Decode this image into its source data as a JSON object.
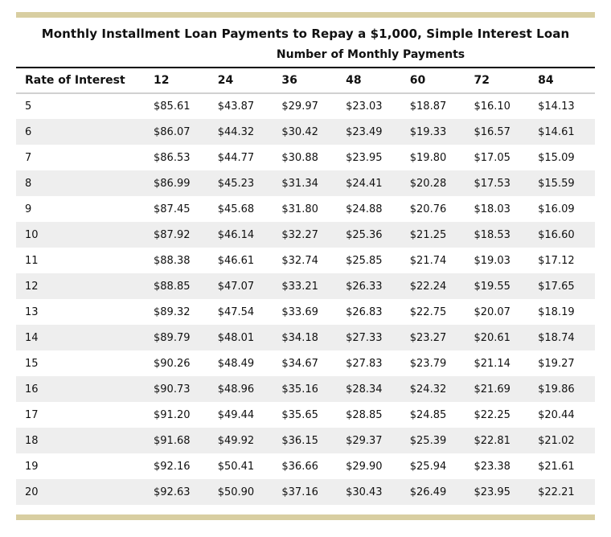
{
  "table": {
    "title": "Monthly Installment Loan Payments to Repay a $1,000, Simple Interest Loan",
    "subtitle": "Number of Monthly Payments",
    "rate_header": "Rate of Interest",
    "payment_columns": [
      "12",
      "24",
      "36",
      "48",
      "60",
      "72",
      "84"
    ],
    "rows": [
      {
        "rate": "5",
        "values": [
          "$85.61",
          "$43.87",
          "$29.97",
          "$23.03",
          "$18.87",
          "$16.10",
          "$14.13"
        ]
      },
      {
        "rate": "6",
        "values": [
          "$86.07",
          "$44.32",
          "$30.42",
          "$23.49",
          "$19.33",
          "$16.57",
          "$14.61"
        ]
      },
      {
        "rate": "7",
        "values": [
          "$86.53",
          "$44.77",
          "$30.88",
          "$23.95",
          "$19.80",
          "$17.05",
          "$15.09"
        ]
      },
      {
        "rate": "8",
        "values": [
          "$86.99",
          "$45.23",
          "$31.34",
          "$24.41",
          "$20.28",
          "$17.53",
          "$15.59"
        ]
      },
      {
        "rate": "9",
        "values": [
          "$87.45",
          "$45.68",
          "$31.80",
          "$24.88",
          "$20.76",
          "$18.03",
          "$16.09"
        ]
      },
      {
        "rate": "10",
        "values": [
          "$87.92",
          "$46.14",
          "$32.27",
          "$25.36",
          "$21.25",
          "$18.53",
          "$16.60"
        ]
      },
      {
        "rate": "11",
        "values": [
          "$88.38",
          "$46.61",
          "$32.74",
          "$25.85",
          "$21.74",
          "$19.03",
          "$17.12"
        ]
      },
      {
        "rate": "12",
        "values": [
          "$88.85",
          "$47.07",
          "$33.21",
          "$26.33",
          "$22.24",
          "$19.55",
          "$17.65"
        ]
      },
      {
        "rate": "13",
        "values": [
          "$89.32",
          "$47.54",
          "$33.69",
          "$26.83",
          "$22.75",
          "$20.07",
          "$18.19"
        ]
      },
      {
        "rate": "14",
        "values": [
          "$89.79",
          "$48.01",
          "$34.18",
          "$27.33",
          "$23.27",
          "$20.61",
          "$18.74"
        ]
      },
      {
        "rate": "15",
        "values": [
          "$90.26",
          "$48.49",
          "$34.67",
          "$27.83",
          "$23.79",
          "$21.14",
          "$19.27"
        ]
      },
      {
        "rate": "16",
        "values": [
          "$90.73",
          "$48.96",
          "$35.16",
          "$28.34",
          "$24.32",
          "$21.69",
          "$19.86"
        ]
      },
      {
        "rate": "17",
        "values": [
          "$91.20",
          "$49.44",
          "$35.65",
          "$28.85",
          "$24.85",
          "$22.25",
          "$20.44"
        ]
      },
      {
        "rate": "18",
        "values": [
          "$91.68",
          "$49.92",
          "$36.15",
          "$29.37",
          "$25.39",
          "$22.81",
          "$21.02"
        ]
      },
      {
        "rate": "19",
        "values": [
          "$92.16",
          "$50.41",
          "$36.66",
          "$29.90",
          "$25.94",
          "$23.38",
          "$21.61"
        ]
      },
      {
        "rate": "20",
        "values": [
          "$92.63",
          "$50.90",
          "$37.16",
          "$30.43",
          "$26.49",
          "$23.95",
          "$22.21"
        ]
      }
    ]
  },
  "colors": {
    "accent-bar": "#d8cea1",
    "stripe": "#eeeeee",
    "rule-dark": "#000000",
    "rule-gray": "#8c8c8c",
    "rule-light": "#d0d0d0",
    "text": "#111111"
  },
  "chart_data": {
    "type": "table",
    "title": "Monthly Installment Loan Payments to Repay a $1,000, Simple Interest Loan",
    "column_group_label": "Number of Monthly Payments",
    "row_label": "Rate of Interest",
    "columns": [
      12,
      24,
      36,
      48,
      60,
      72,
      84
    ],
    "rates": [
      5,
      6,
      7,
      8,
      9,
      10,
      11,
      12,
      13,
      14,
      15,
      16,
      17,
      18,
      19,
      20
    ],
    "payments": [
      [
        85.61,
        43.87,
        29.97,
        23.03,
        18.87,
        16.1,
        14.13
      ],
      [
        86.07,
        44.32,
        30.42,
        23.49,
        19.33,
        16.57,
        14.61
      ],
      [
        86.53,
        44.77,
        30.88,
        23.95,
        19.8,
        17.05,
        15.09
      ],
      [
        86.99,
        45.23,
        31.34,
        24.41,
        20.28,
        17.53,
        15.59
      ],
      [
        87.45,
        45.68,
        31.8,
        24.88,
        20.76,
        18.03,
        16.09
      ],
      [
        87.92,
        46.14,
        32.27,
        25.36,
        21.25,
        18.53,
        16.6
      ],
      [
        88.38,
        46.61,
        32.74,
        25.85,
        21.74,
        19.03,
        17.12
      ],
      [
        88.85,
        47.07,
        33.21,
        26.33,
        22.24,
        19.55,
        17.65
      ],
      [
        89.32,
        47.54,
        33.69,
        26.83,
        22.75,
        20.07,
        18.19
      ],
      [
        89.79,
        48.01,
        34.18,
        27.33,
        23.27,
        20.61,
        18.74
      ],
      [
        90.26,
        48.49,
        34.67,
        27.83,
        23.79,
        21.14,
        19.27
      ],
      [
        90.73,
        48.96,
        35.16,
        28.34,
        24.32,
        21.69,
        19.86
      ],
      [
        91.2,
        49.44,
        35.65,
        28.85,
        24.85,
        22.25,
        20.44
      ],
      [
        91.68,
        49.92,
        36.15,
        29.37,
        25.39,
        22.81,
        21.02
      ],
      [
        92.16,
        50.41,
        36.66,
        29.9,
        25.94,
        23.38,
        21.61
      ],
      [
        92.63,
        50.9,
        37.16,
        30.43,
        26.49,
        23.95,
        22.21
      ]
    ]
  }
}
